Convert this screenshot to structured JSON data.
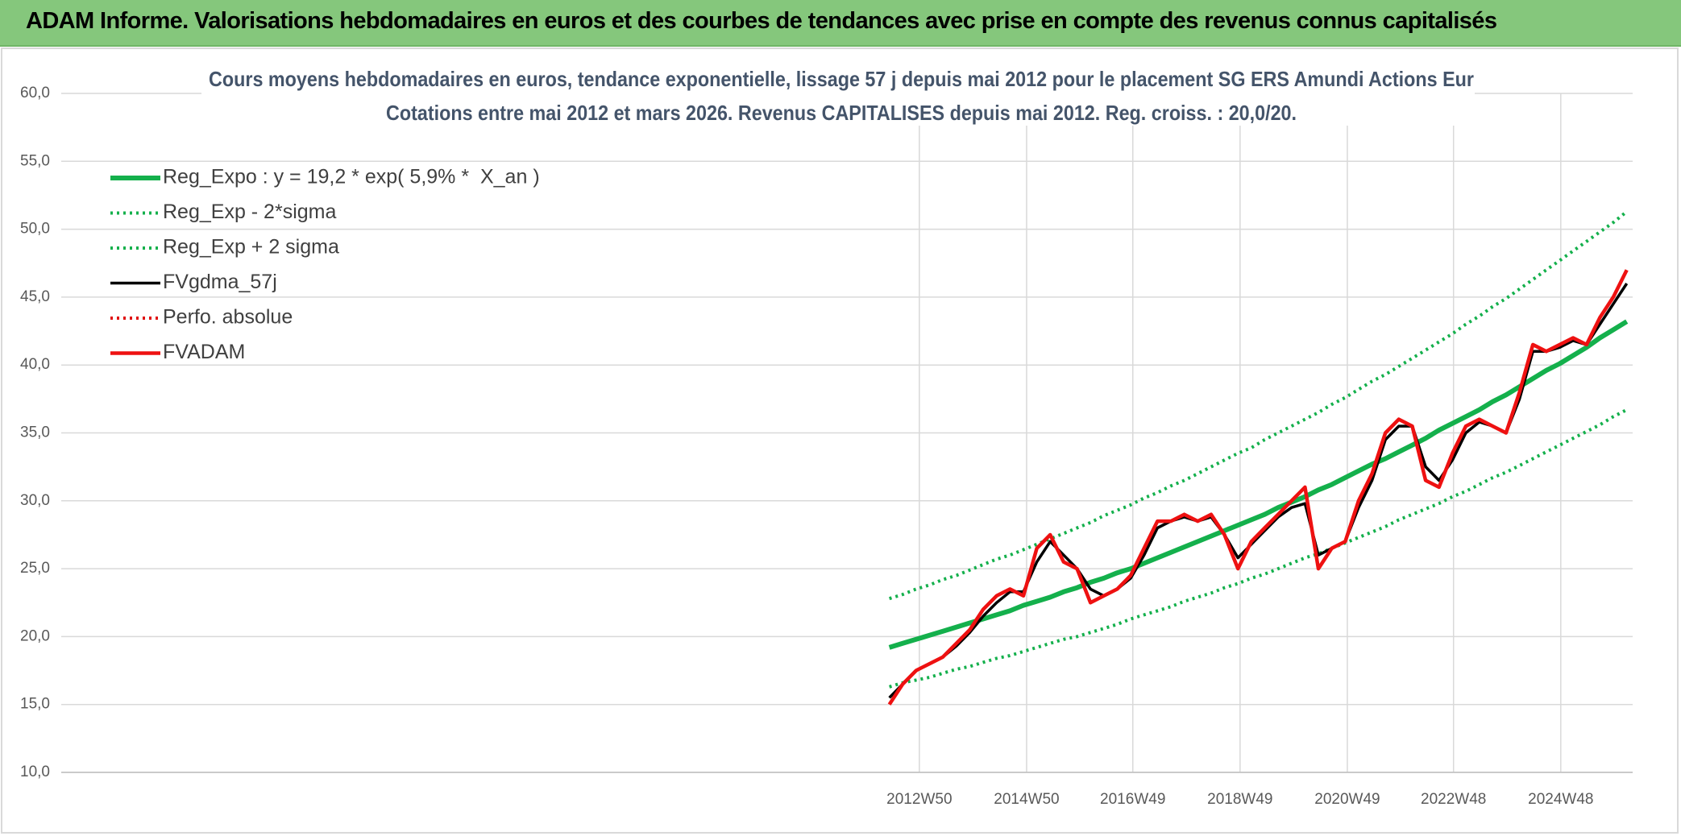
{
  "header": {
    "title": "ADAM Informe. Valorisations hebdomadaires en euros et des courbes de tendances avec prise en compte des revenus connus capitalisés"
  },
  "chart_data": {
    "type": "line",
    "title": "Cours moyens hebdomadaires en euros, tendance exponentielle, lissage 57 j depuis mai 2012 pour le placement SG ERS Amundi Actions Eur",
    "subtitle": "Cotations entre mai 2012 et mars 2026. Revenus CAPITALISES depuis mai 2012. Reg. croiss. : 20,0/20.",
    "x": [
      2012.4,
      2012.65,
      2012.9,
      2013.15,
      2013.4,
      2013.65,
      2013.9,
      2014.15,
      2014.4,
      2014.65,
      2014.9,
      2015.15,
      2015.4,
      2015.65,
      2015.9,
      2016.15,
      2016.4,
      2016.65,
      2016.9,
      2017.15,
      2017.4,
      2017.65,
      2017.9,
      2018.15,
      2018.4,
      2018.65,
      2018.9,
      2019.15,
      2019.4,
      2019.65,
      2019.9,
      2020.15,
      2020.4,
      2020.65,
      2020.9,
      2021.15,
      2021.4,
      2021.65,
      2021.9,
      2022.15,
      2022.4,
      2022.65,
      2022.9,
      2023.15,
      2023.4,
      2023.65,
      2023.9,
      2024.15,
      2024.4,
      2024.65,
      2024.9,
      2025.15,
      2025.4,
      2025.65,
      2025.9,
      2026.15
    ],
    "xlim": [
      1996.96,
      2026.26
    ],
    "xticks": [
      {
        "value": 2012.96,
        "label": "2012W50"
      },
      {
        "value": 2014.96,
        "label": "2014W50"
      },
      {
        "value": 2016.94,
        "label": "2016W49"
      },
      {
        "value": 2018.94,
        "label": "2018W49"
      },
      {
        "value": 2020.94,
        "label": "2020W49"
      },
      {
        "value": 2022.92,
        "label": "2022W48"
      },
      {
        "value": 2024.92,
        "label": "2024W48"
      }
    ],
    "ylim": [
      10,
      60
    ],
    "yticks": [
      {
        "value": 10,
        "label": "10,0"
      },
      {
        "value": 15,
        "label": "15,0"
      },
      {
        "value": 20,
        "label": "20,0"
      },
      {
        "value": 25,
        "label": "25,0"
      },
      {
        "value": 30,
        "label": "30,0"
      },
      {
        "value": 35,
        "label": "35,0"
      },
      {
        "value": 40,
        "label": "40,0"
      },
      {
        "value": 45,
        "label": "45,0"
      },
      {
        "value": 50,
        "label": "50,0"
      },
      {
        "value": 55,
        "label": "55,0"
      },
      {
        "value": 60,
        "label": "60,0"
      }
    ],
    "grid": true,
    "legend": "top-left",
    "series": [
      {
        "name": "Reg_Expo : y = 19,2 * exp( 5,9% *  X_an )",
        "color": "#14b04c",
        "style": "solid",
        "values": [
          19.2,
          19.5,
          19.8,
          20.1,
          20.4,
          20.7,
          21.0,
          21.3,
          21.6,
          21.9,
          22.3,
          22.6,
          22.9,
          23.3,
          23.6,
          24.0,
          24.3,
          24.7,
          25.0,
          25.4,
          25.8,
          26.2,
          26.6,
          27.0,
          27.4,
          27.8,
          28.2,
          28.6,
          29.0,
          29.5,
          29.9,
          30.3,
          30.8,
          31.2,
          31.7,
          32.2,
          32.7,
          33.1,
          33.6,
          34.1,
          34.6,
          35.2,
          35.7,
          36.2,
          36.7,
          37.3,
          37.8,
          38.4,
          39.0,
          39.6,
          40.1,
          40.7,
          41.3,
          42.0,
          42.6,
          43.2
        ]
      },
      {
        "name": "Reg_Exp - 2*sigma",
        "color": "#14b04c",
        "style": "dotted",
        "values": [
          16.3,
          16.6,
          16.8,
          17.0,
          17.3,
          17.6,
          17.8,
          18.1,
          18.4,
          18.6,
          18.9,
          19.2,
          19.5,
          19.8,
          20.0,
          20.3,
          20.6,
          20.9,
          21.3,
          21.6,
          21.9,
          22.2,
          22.6,
          22.9,
          23.2,
          23.6,
          23.9,
          24.3,
          24.6,
          25.0,
          25.4,
          25.8,
          26.1,
          26.5,
          26.9,
          27.3,
          27.7,
          28.1,
          28.6,
          29.0,
          29.4,
          29.8,
          30.3,
          30.7,
          31.2,
          31.7,
          32.1,
          32.6,
          33.1,
          33.6,
          34.1,
          34.6,
          35.1,
          35.6,
          36.2,
          36.7
        ]
      },
      {
        "name": "Reg_Exp + 2 sigma",
        "color": "#14b04c",
        "style": "dotted",
        "values": [
          22.8,
          23.1,
          23.5,
          23.8,
          24.2,
          24.5,
          24.9,
          25.3,
          25.7,
          26.0,
          26.4,
          26.8,
          27.2,
          27.6,
          28.0,
          28.4,
          28.9,
          29.3,
          29.7,
          30.2,
          30.6,
          31.1,
          31.5,
          32.0,
          32.5,
          33.0,
          33.5,
          33.9,
          34.5,
          35.0,
          35.5,
          36.0,
          36.5,
          37.1,
          37.6,
          38.2,
          38.8,
          39.3,
          39.9,
          40.5,
          41.1,
          41.7,
          42.3,
          43.0,
          43.6,
          44.3,
          44.9,
          45.6,
          46.3,
          47.0,
          47.7,
          48.4,
          49.1,
          49.8,
          50.5,
          51.3
        ]
      },
      {
        "name": "FVgdma_57j",
        "color": "#000000",
        "style": "solid",
        "values": [
          15.5,
          16.5,
          17.5,
          18.0,
          18.5,
          19.3,
          20.3,
          21.5,
          22.5,
          23.3,
          23.3,
          25.5,
          27.0,
          26.0,
          25.0,
          23.5,
          23.0,
          23.5,
          24.3,
          26.0,
          28.0,
          28.5,
          28.8,
          28.5,
          28.8,
          27.5,
          25.8,
          26.8,
          27.8,
          28.8,
          29.5,
          29.8,
          26.0,
          26.5,
          27.0,
          29.5,
          31.5,
          34.5,
          35.5,
          35.5,
          32.5,
          31.5,
          33.0,
          35.0,
          35.8,
          35.5,
          35.0,
          37.5,
          41.0,
          41.0,
          41.3,
          41.8,
          41.5,
          43.0,
          44.5,
          46.0
        ]
      },
      {
        "name": "Perfo. absolue",
        "color": "#e01010",
        "style": "dotted",
        "values": [
          null,
          null,
          null,
          null,
          null,
          null,
          null,
          null,
          null,
          null,
          null,
          null,
          null,
          null,
          null,
          null,
          null,
          null,
          null,
          null,
          null,
          null,
          null,
          null,
          null,
          null,
          null,
          null,
          null,
          null,
          null,
          null,
          null,
          null,
          null,
          null,
          null,
          null,
          null,
          null,
          null,
          null,
          null,
          null,
          null,
          null,
          null,
          null,
          null,
          null,
          null,
          null,
          null,
          null,
          null,
          null
        ]
      },
      {
        "name": "FVADAM",
        "color": "#ee1111",
        "style": "solid",
        "values": [
          15.0,
          16.5,
          17.5,
          18.0,
          18.5,
          19.5,
          20.5,
          22.0,
          23.0,
          23.5,
          23.0,
          26.5,
          27.5,
          25.5,
          25.0,
          22.5,
          23.0,
          23.5,
          24.5,
          26.5,
          28.5,
          28.5,
          29.0,
          28.5,
          29.0,
          27.5,
          25.0,
          27.0,
          28.0,
          29.0,
          30.0,
          31.0,
          25.0,
          26.5,
          27.0,
          30.0,
          32.0,
          35.0,
          36.0,
          35.5,
          31.5,
          31.0,
          33.5,
          35.5,
          36.0,
          35.5,
          35.0,
          38.0,
          41.5,
          41.0,
          41.5,
          42.0,
          41.5,
          43.5,
          45.0,
          47.0
        ]
      }
    ]
  }
}
